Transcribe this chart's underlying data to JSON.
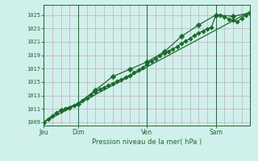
{
  "title": "",
  "xlabel": "Pression niveau de la mer( hPa )",
  "background_color": "#d0f0ec",
  "grid_color_h": "#c8b8c8",
  "grid_color_v": "#c8b8c8",
  "line_color": "#1a6b2a",
  "ylim": [
    1008.5,
    1026.5
  ],
  "yticks": [
    1009,
    1011,
    1013,
    1015,
    1017,
    1019,
    1021,
    1023,
    1025
  ],
  "day_labels": [
    "Jeu",
    "Dim",
    "Ven",
    "Sam"
  ],
  "day_positions": [
    0,
    24,
    72,
    120
  ],
  "xlim": [
    0,
    144
  ],
  "total_hours": 144,
  "series1_x": [
    0,
    3,
    6,
    9,
    12,
    15,
    18,
    21,
    24,
    27,
    30,
    33,
    36,
    39,
    42,
    45,
    48,
    51,
    54,
    57,
    60,
    63,
    66,
    69,
    72,
    75,
    78,
    81,
    84,
    87,
    90,
    93,
    96,
    99,
    102,
    105,
    108,
    111,
    114,
    117,
    120,
    123,
    126,
    129,
    132,
    135,
    138,
    141,
    144
  ],
  "series1_y": [
    1009.0,
    1009.5,
    1010.0,
    1010.4,
    1010.8,
    1011.0,
    1011.2,
    1011.5,
    1011.8,
    1012.2,
    1012.6,
    1013.1,
    1013.6,
    1013.9,
    1014.2,
    1014.5,
    1014.8,
    1015.1,
    1015.4,
    1015.7,
    1016.0,
    1016.4,
    1016.8,
    1017.2,
    1017.6,
    1018.1,
    1018.5,
    1018.9,
    1019.3,
    1019.6,
    1019.9,
    1020.3,
    1020.7,
    1021.1,
    1021.5,
    1021.9,
    1022.3,
    1022.6,
    1022.9,
    1023.2,
    1025.0,
    1025.0,
    1024.7,
    1024.4,
    1024.2,
    1024.0,
    1024.5,
    1025.0,
    1025.3
  ],
  "series2_x": [
    0,
    12,
    24,
    36,
    48,
    60,
    72,
    84,
    96,
    108,
    120,
    132,
    144
  ],
  "series2_y": [
    1009.0,
    1010.8,
    1011.8,
    1013.8,
    1015.8,
    1016.9,
    1018.0,
    1019.5,
    1021.8,
    1023.5,
    1025.0,
    1024.8,
    1025.3
  ],
  "trend_x": [
    0,
    144
  ],
  "trend_y": [
    1009.0,
    1025.5
  ],
  "marker_size": 2.8,
  "marker_size2": 3.5,
  "line_width": 0.9
}
